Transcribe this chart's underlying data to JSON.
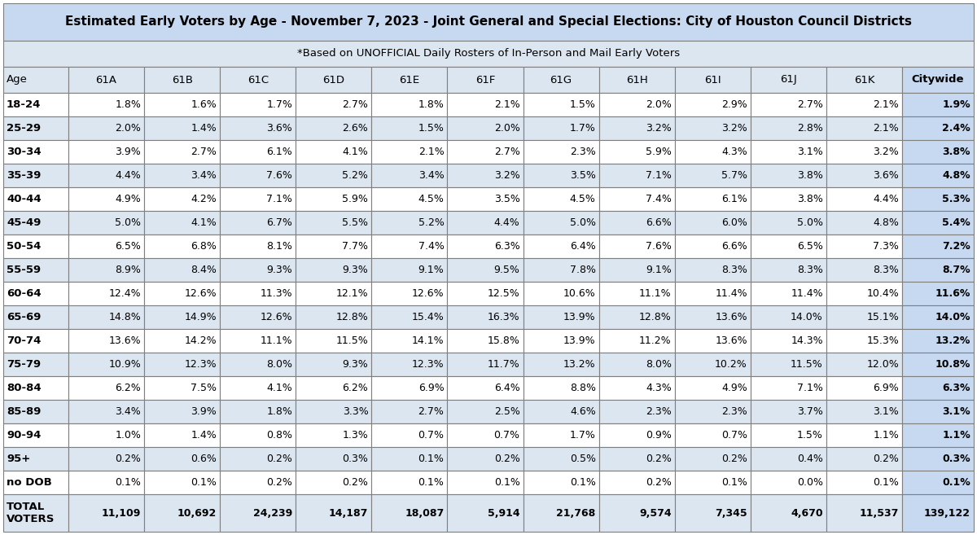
{
  "title": "Estimated Early Voters by Age - November 7, 2023 - Joint General and Special Elections: City of Houston Council Districts",
  "subtitle": "*Based on UNOFFICIAL Daily Rosters of In-Person and Mail Early Voters",
  "columns": [
    "Age",
    "61A",
    "61B",
    "61C",
    "61D",
    "61E",
    "61F",
    "61G",
    "61H",
    "61I",
    "61J",
    "61K",
    "Citywide"
  ],
  "rows": [
    [
      "18-24",
      "1.8%",
      "1.6%",
      "1.7%",
      "2.7%",
      "1.8%",
      "2.1%",
      "1.5%",
      "2.0%",
      "2.9%",
      "2.7%",
      "2.1%",
      "1.9%"
    ],
    [
      "25-29",
      "2.0%",
      "1.4%",
      "3.6%",
      "2.6%",
      "1.5%",
      "2.0%",
      "1.7%",
      "3.2%",
      "3.2%",
      "2.8%",
      "2.1%",
      "2.4%"
    ],
    [
      "30-34",
      "3.9%",
      "2.7%",
      "6.1%",
      "4.1%",
      "2.1%",
      "2.7%",
      "2.3%",
      "5.9%",
      "4.3%",
      "3.1%",
      "3.2%",
      "3.8%"
    ],
    [
      "35-39",
      "4.4%",
      "3.4%",
      "7.6%",
      "5.2%",
      "3.4%",
      "3.2%",
      "3.5%",
      "7.1%",
      "5.7%",
      "3.8%",
      "3.6%",
      "4.8%"
    ],
    [
      "40-44",
      "4.9%",
      "4.2%",
      "7.1%",
      "5.9%",
      "4.5%",
      "3.5%",
      "4.5%",
      "7.4%",
      "6.1%",
      "3.8%",
      "4.4%",
      "5.3%"
    ],
    [
      "45-49",
      "5.0%",
      "4.1%",
      "6.7%",
      "5.5%",
      "5.2%",
      "4.4%",
      "5.0%",
      "6.6%",
      "6.0%",
      "5.0%",
      "4.8%",
      "5.4%"
    ],
    [
      "50-54",
      "6.5%",
      "6.8%",
      "8.1%",
      "7.7%",
      "7.4%",
      "6.3%",
      "6.4%",
      "7.6%",
      "6.6%",
      "6.5%",
      "7.3%",
      "7.2%"
    ],
    [
      "55-59",
      "8.9%",
      "8.4%",
      "9.3%",
      "9.3%",
      "9.1%",
      "9.5%",
      "7.8%",
      "9.1%",
      "8.3%",
      "8.3%",
      "8.3%",
      "8.7%"
    ],
    [
      "60-64",
      "12.4%",
      "12.6%",
      "11.3%",
      "12.1%",
      "12.6%",
      "12.5%",
      "10.6%",
      "11.1%",
      "11.4%",
      "11.4%",
      "10.4%",
      "11.6%"
    ],
    [
      "65-69",
      "14.8%",
      "14.9%",
      "12.6%",
      "12.8%",
      "15.4%",
      "16.3%",
      "13.9%",
      "12.8%",
      "13.6%",
      "14.0%",
      "15.1%",
      "14.0%"
    ],
    [
      "70-74",
      "13.6%",
      "14.2%",
      "11.1%",
      "11.5%",
      "14.1%",
      "15.8%",
      "13.9%",
      "11.2%",
      "13.6%",
      "14.3%",
      "15.3%",
      "13.2%"
    ],
    [
      "75-79",
      "10.9%",
      "12.3%",
      "8.0%",
      "9.3%",
      "12.3%",
      "11.7%",
      "13.2%",
      "8.0%",
      "10.2%",
      "11.5%",
      "12.0%",
      "10.8%"
    ],
    [
      "80-84",
      "6.2%",
      "7.5%",
      "4.1%",
      "6.2%",
      "6.9%",
      "6.4%",
      "8.8%",
      "4.3%",
      "4.9%",
      "7.1%",
      "6.9%",
      "6.3%"
    ],
    [
      "85-89",
      "3.4%",
      "3.9%",
      "1.8%",
      "3.3%",
      "2.7%",
      "2.5%",
      "4.6%",
      "2.3%",
      "2.3%",
      "3.7%",
      "3.1%",
      "3.1%"
    ],
    [
      "90-94",
      "1.0%",
      "1.4%",
      "0.8%",
      "1.3%",
      "0.7%",
      "0.7%",
      "1.7%",
      "0.9%",
      "0.7%",
      "1.5%",
      "1.1%",
      "1.1%"
    ],
    [
      "95+",
      "0.2%",
      "0.6%",
      "0.2%",
      "0.3%",
      "0.1%",
      "0.2%",
      "0.5%",
      "0.2%",
      "0.2%",
      "0.4%",
      "0.2%",
      "0.3%"
    ],
    [
      "no DOB",
      "0.1%",
      "0.1%",
      "0.2%",
      "0.2%",
      "0.1%",
      "0.1%",
      "0.1%",
      "0.2%",
      "0.1%",
      "0.0%",
      "0.1%",
      "0.1%"
    ]
  ],
  "total_row_label": "TOTAL\nVOTERS",
  "totals": [
    "11,109",
    "10,692",
    "24,239",
    "14,187",
    "18,087",
    "5,914",
    "21,768",
    "9,574",
    "7,345",
    "4,670",
    "11,537",
    "139,122"
  ],
  "header_bg": "#c6d9f1",
  "subheader_bg": "#dce6f1",
  "col_header_bg": "#dce6f1",
  "row_alt_bg1": "#ffffff",
  "row_alt_bg2": "#dce6f1",
  "citywide_bg": "#c6d9f1",
  "total_row_bg": "#dce6f1",
  "border_color": "#7f7f7f",
  "title_fontsize": 11.0,
  "subtitle_fontsize": 9.5,
  "cell_fontsize": 9.0,
  "header_fontsize": 9.5
}
